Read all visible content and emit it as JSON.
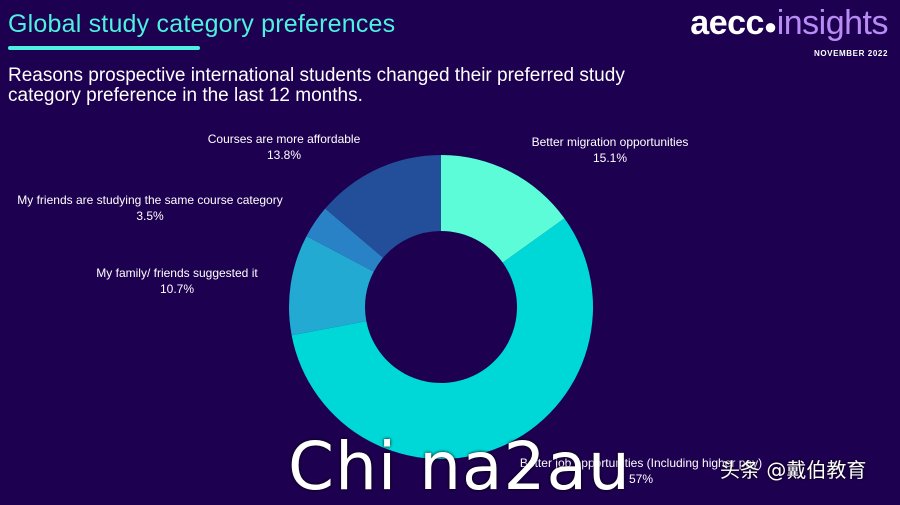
{
  "header": {
    "title": "Global study category preferences",
    "subtitle": "Reasons prospective international students changed their preferred study category preference in the last 12 months.",
    "logo": {
      "brand": "aecc",
      "product": "insights"
    },
    "date": "NOVEMBER 2022"
  },
  "colors": {
    "background": "#1e0050",
    "accent": "#4ef0e0"
  },
  "chart_data": {
    "type": "pie",
    "donut": true,
    "title": "Reasons prospective international students changed their preferred study category preference in the last 12 months.",
    "slices": [
      {
        "label": "Better migration opportunities",
        "value": 15.1,
        "display": "15.1%",
        "color": "#5cfcd9"
      },
      {
        "label": "Better job opportunities (Including higher pay)",
        "value": 57,
        "display": "57%",
        "color": "#00d8d8"
      },
      {
        "label": "My family/ friends suggested it",
        "value": 10.7,
        "display": "10.7%",
        "color": "#22aad2"
      },
      {
        "label": "My friends are studying the same course category",
        "value": 3.5,
        "display": "3.5%",
        "color": "#2a82c6"
      },
      {
        "label": "Courses are more affordable",
        "value": 13.8,
        "display": "13.8%",
        "color": "#224e9a"
      }
    ]
  },
  "overlay": {
    "watermark": "Chi na2au",
    "source_tag": "头条 @戴伯教育"
  }
}
